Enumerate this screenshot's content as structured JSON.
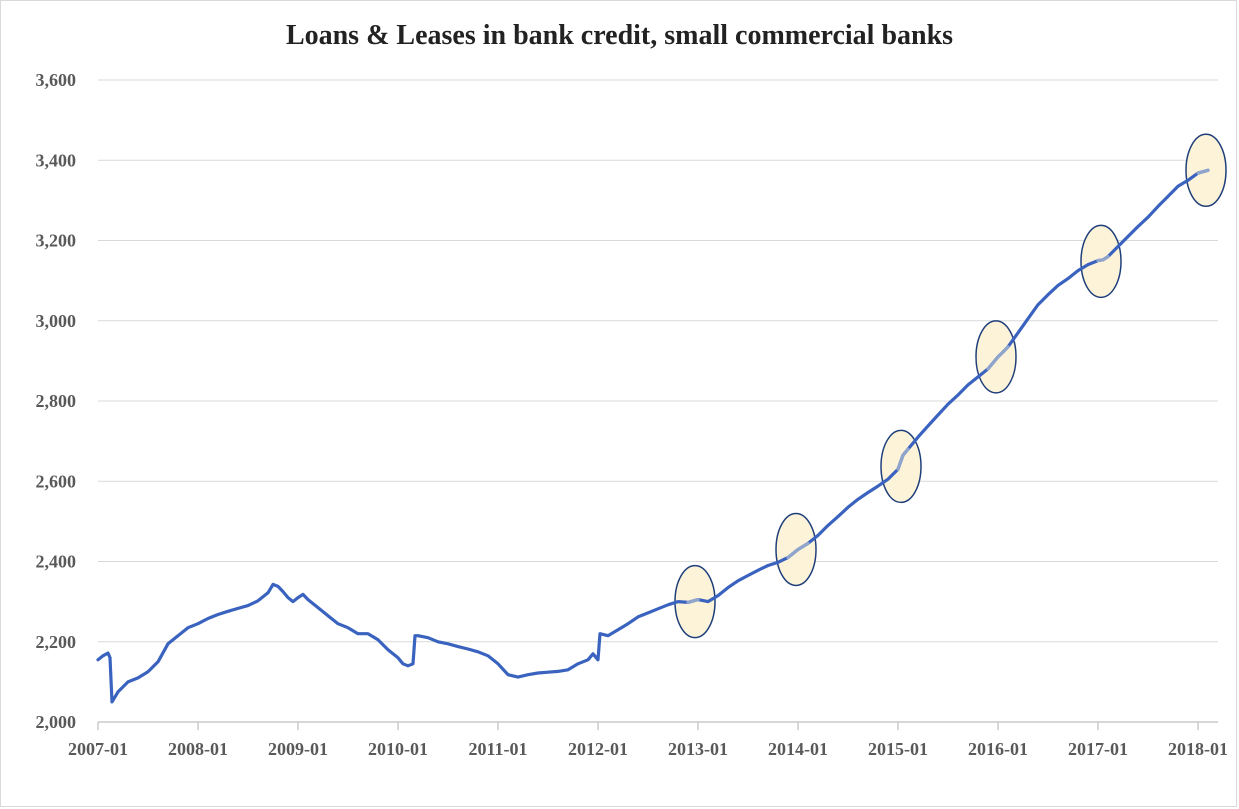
{
  "chart_data": {
    "type": "line",
    "title": "Loans & Leases in bank credit, small commercial banks",
    "xlabel": "",
    "ylabel": "",
    "ylim": [
      2000,
      3600
    ],
    "y_ticks": [
      "2,000",
      "2,200",
      "2,400",
      "2,600",
      "2,800",
      "3,000",
      "3,200",
      "3,400",
      "3,600"
    ],
    "y_tick_values": [
      2000,
      2200,
      2400,
      2600,
      2800,
      3000,
      3200,
      3400,
      3600
    ],
    "x_ticks": [
      "2007-01",
      "2008-01",
      "2009-01",
      "2010-01",
      "2011-01",
      "2012-01",
      "2013-01",
      "2014-01",
      "2015-01",
      "2016-01",
      "2017-01",
      "2018-01"
    ],
    "x_tick_values": [
      2007.0,
      2008.0,
      2009.0,
      2010.0,
      2011.0,
      2012.0,
      2013.0,
      2014.0,
      2015.0,
      2016.0,
      2017.0,
      2018.0
    ],
    "xlim": [
      2007.0,
      2018.2
    ],
    "grid": true,
    "line_color": "#3a63bf",
    "highlight_color": "#8fa5cc",
    "marker_fill": "#fdf3d9",
    "marker_stroke": "#1f3f7a",
    "series": [
      {
        "x": [
          2007.0,
          2007.05,
          2007.1,
          2007.12,
          2007.14,
          2007.2,
          2007.3,
          2007.4,
          2007.5,
          2007.6,
          2007.7,
          2007.8,
          2007.9,
          2008.0,
          2008.1,
          2008.2,
          2008.3,
          2008.4,
          2008.5,
          2008.6,
          2008.7,
          2008.75,
          2008.8,
          2008.85,
          2008.9,
          2008.95,
          2009.0,
          2009.05,
          2009.1,
          2009.2,
          2009.3,
          2009.4,
          2009.5,
          2009.6,
          2009.7,
          2009.8,
          2009.9,
          2010.0,
          2010.05,
          2010.1,
          2010.15,
          2010.17,
          2010.2,
          2010.3,
          2010.4,
          2010.5,
          2010.6,
          2010.7,
          2010.8,
          2010.9,
          2011.0,
          2011.1,
          2011.2,
          2011.3,
          2011.4,
          2011.5,
          2011.6,
          2011.7,
          2011.8,
          2011.9,
          2011.95,
          2012.0,
          2012.02,
          2012.1,
          2012.2,
          2012.3,
          2012.4,
          2012.5,
          2012.6,
          2012.7,
          2012.8,
          2012.9,
          2013.0,
          2013.1,
          2013.2,
          2013.3,
          2013.4,
          2013.5,
          2013.6,
          2013.7,
          2013.8,
          2013.9,
          2014.0,
          2014.1,
          2014.2,
          2014.3,
          2014.4,
          2014.5,
          2014.6,
          2014.7,
          2014.8,
          2014.9,
          2015.0,
          2015.05,
          2015.1,
          2015.2,
          2015.3,
          2015.4,
          2015.5,
          2015.6,
          2015.7,
          2015.8,
          2015.9,
          2016.0,
          2016.05,
          2016.1,
          2016.2,
          2016.3,
          2016.4,
          2016.5,
          2016.6,
          2016.7,
          2016.8,
          2016.9,
          2017.0,
          2017.05,
          2017.1,
          2017.2,
          2017.3,
          2017.4,
          2017.5,
          2017.6,
          2017.7,
          2017.8,
          2017.9,
          2018.0,
          2018.1
        ],
        "values": [
          2155,
          2165,
          2172,
          2160,
          2050,
          2075,
          2100,
          2110,
          2125,
          2150,
          2195,
          2215,
          2235,
          2245,
          2258,
          2268,
          2276,
          2283,
          2290,
          2302,
          2322,
          2343,
          2338,
          2325,
          2310,
          2300,
          2310,
          2318,
          2305,
          2285,
          2265,
          2245,
          2235,
          2220,
          2220,
          2205,
          2180,
          2160,
          2145,
          2140,
          2145,
          2215,
          2215,
          2210,
          2200,
          2195,
          2188,
          2182,
          2175,
          2165,
          2145,
          2118,
          2112,
          2118,
          2122,
          2124,
          2126,
          2130,
          2145,
          2155,
          2170,
          2155,
          2220,
          2215,
          2230,
          2245,
          2262,
          2272,
          2282,
          2292,
          2300,
          2298,
          2305,
          2300,
          2315,
          2335,
          2352,
          2365,
          2378,
          2390,
          2398,
          2410,
          2430,
          2445,
          2465,
          2490,
          2512,
          2535,
          2555,
          2572,
          2588,
          2605,
          2630,
          2665,
          2680,
          2710,
          2738,
          2765,
          2792,
          2815,
          2840,
          2860,
          2880,
          2910,
          2922,
          2935,
          2970,
          3005,
          3040,
          3065,
          3088,
          3105,
          3125,
          3140,
          3150,
          3152,
          3160,
          3185,
          3210,
          3235,
          3258,
          3285,
          3310,
          3335,
          3350,
          3368,
          3375
        ]
      }
    ],
    "highlights": [
      {
        "x": 2012.97,
        "y": 2300
      },
      {
        "x": 2013.98,
        "y": 2430
      },
      {
        "x": 2015.03,
        "y": 2637
      },
      {
        "x": 2015.98,
        "y": 2910
      },
      {
        "x": 2017.03,
        "y": 3148
      },
      {
        "x": 2018.08,
        "y": 3375
      }
    ]
  }
}
